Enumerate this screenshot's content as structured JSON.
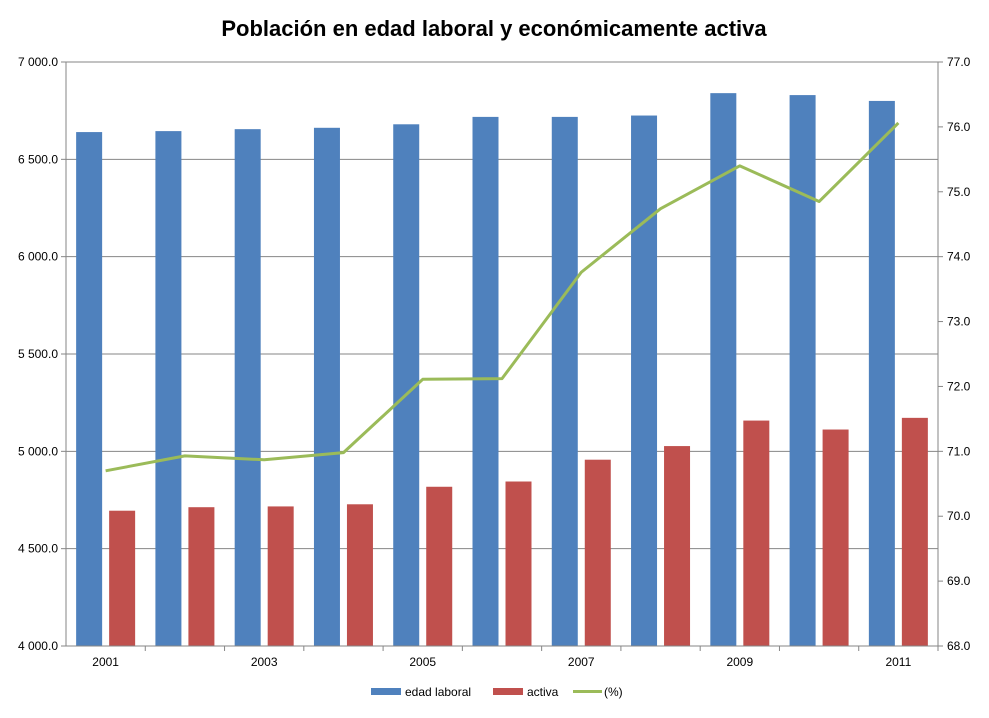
{
  "chart_data": {
    "type": "bar",
    "title": "Población en edad laboral y económicamente activa",
    "categories": [
      "2001",
      "2002",
      "2003",
      "2004",
      "2005",
      "2006",
      "2007",
      "2008",
      "2009",
      "2010",
      "2011"
    ],
    "x_tick_labels": [
      "2001",
      "",
      "2003",
      "",
      "2005",
      "",
      "2007",
      "",
      "2009",
      "",
      "2011"
    ],
    "series": [
      {
        "name": "edad laboral",
        "axis": "left",
        "kind": "bar",
        "color": "#4F81BD",
        "values": [
          6640,
          6645,
          6655,
          6662,
          6680,
          6718,
          6718,
          6725,
          6840,
          6830,
          6800
        ]
      },
      {
        "name": "activa",
        "axis": "left",
        "kind": "bar",
        "color": "#C0504D",
        "values": [
          4695,
          4713,
          4717,
          4728,
          4818,
          4845,
          4957,
          5027,
          5158,
          5112,
          5172
        ]
      },
      {
        "name": "(%)",
        "axis": "right",
        "kind": "line",
        "color": "#9BBB59",
        "values": [
          70.7,
          70.93,
          70.87,
          70.98,
          72.11,
          72.12,
          73.76,
          74.74,
          75.4,
          74.85,
          76.06
        ]
      }
    ],
    "ylim_left": [
      4000,
      7000
    ],
    "yticks_left": [
      "4 000.0",
      "4 500.0",
      "5 000.0",
      "5 500.0",
      "6 000.0",
      "6 500.0",
      "7 000.0"
    ],
    "ylim_right": [
      68,
      77
    ],
    "yticks_right": [
      "68.0",
      "69.0",
      "70.0",
      "71.0",
      "72.0",
      "73.0",
      "74.0",
      "75.0",
      "76.0",
      "77.0"
    ],
    "grid": true,
    "legend_position": "bottom",
    "legend": [
      "edad laboral",
      "activa",
      "(%)"
    ]
  }
}
